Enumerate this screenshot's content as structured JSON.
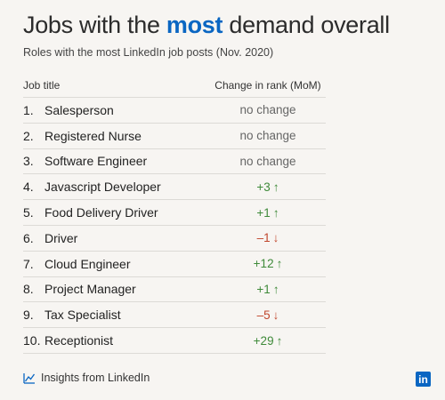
{
  "header": {
    "title_pre": "Jobs with the ",
    "title_highlight": "most",
    "title_post": " demand overall",
    "subtitle": "Roles with the most LinkedIn job posts (Nov. 2020)"
  },
  "chart_data": {
    "type": "table",
    "columns": [
      "Job title",
      "Change in rank (MoM)"
    ],
    "rows": [
      {
        "rank": "1.",
        "job": "Salesperson",
        "change": "no change",
        "direction": "none"
      },
      {
        "rank": "2.",
        "job": "Registered Nurse",
        "change": "no change",
        "direction": "none"
      },
      {
        "rank": "3.",
        "job": "Software Engineer",
        "change": "no change",
        "direction": "none"
      },
      {
        "rank": "4.",
        "job": "Javascript Developer",
        "change": "+3",
        "direction": "up"
      },
      {
        "rank": "5.",
        "job": "Food Delivery Driver",
        "change": "+1",
        "direction": "up"
      },
      {
        "rank": "6.",
        "job": "Driver",
        "change": "–1",
        "direction": "down"
      },
      {
        "rank": "7.",
        "job": "Cloud Engineer",
        "change": "+12",
        "direction": "up"
      },
      {
        "rank": "8.",
        "job": "Project Manager",
        "change": "+1",
        "direction": "up"
      },
      {
        "rank": "9.",
        "job": "Tax Specialist",
        "change": "–5",
        "direction": "down"
      },
      {
        "rank": "10.",
        "job": "Receptionist",
        "change": "+29",
        "direction": "up"
      }
    ]
  },
  "colors": {
    "accent": "#0a66c2",
    "up": "#3f8a3a",
    "down": "#c0462c",
    "background": "#f7f5f2"
  },
  "footer": {
    "source": "Insights from LinkedIn",
    "logo_text": "in",
    "icon": "trend-line-icon"
  }
}
